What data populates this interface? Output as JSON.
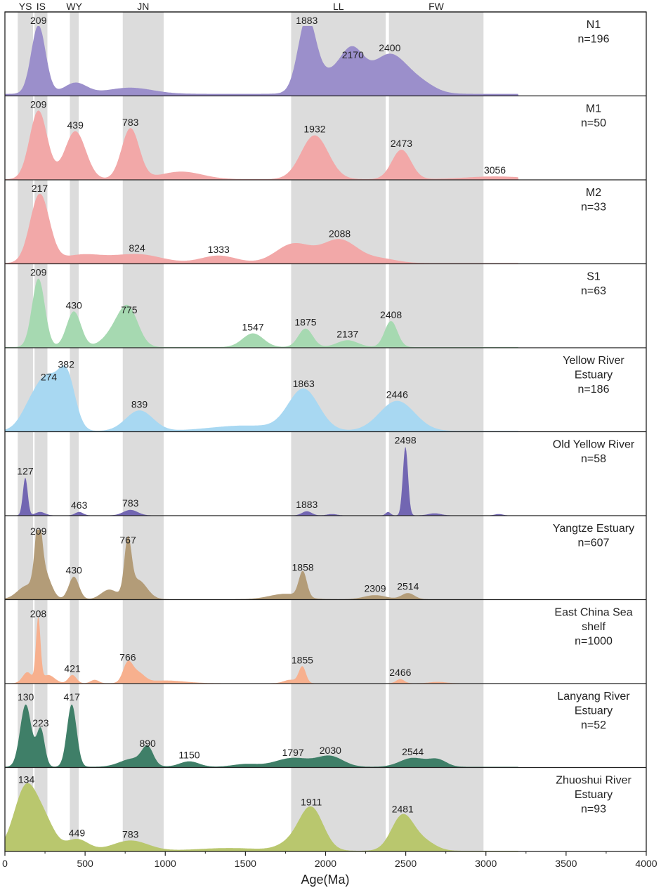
{
  "chart_data": {
    "type": "area",
    "xlabel": "Age(Ma)",
    "xlim": [
      0,
      4000
    ],
    "x_ticks": [
      "0",
      "500",
      "1000",
      "1500",
      "2000",
      "2500",
      "3000",
      "3500",
      "4000"
    ],
    "x_tick_values": [
      0,
      500,
      1000,
      1500,
      2000,
      2500,
      3000,
      3500,
      4000
    ],
    "bands": [
      {
        "label": "YS",
        "start": 80,
        "end": 175
      },
      {
        "label": "IS",
        "start": 185,
        "end": 265
      },
      {
        "label": "WY",
        "start": 405,
        "end": 460
      },
      {
        "label": "JN",
        "start": 735,
        "end": 990
      },
      {
        "label": "LL",
        "start": 1785,
        "end": 2375
      },
      {
        "label": "FW",
        "start": 2395,
        "end": 2985
      }
    ],
    "panels": [
      {
        "name": "N1",
        "n": "n=196",
        "color": "#9b8fcb",
        "base": 0.03,
        "peaks": [
          [
            209,
            1.0,
            45
          ],
          [
            440,
            0.16,
            70
          ],
          [
            780,
            0.09,
            140
          ],
          [
            1883,
            1.02,
            55
          ],
          [
            2050,
            0.3,
            120
          ],
          [
            2170,
            0.45,
            70
          ],
          [
            2400,
            0.57,
            110
          ],
          [
            2600,
            0.12,
            90
          ]
        ],
        "labels": [
          [
            "209",
            209,
            1.0
          ],
          [
            "1883",
            1883,
            1.0
          ],
          [
            "2170",
            2170,
            0.5
          ],
          [
            "2400",
            2400,
            0.6
          ]
        ]
      },
      {
        "name": "M1",
        "n": "n=50",
        "color": "#f2a8a8",
        "base": 0.01,
        "peaks": [
          [
            209,
            1.0,
            55
          ],
          [
            439,
            0.7,
            65
          ],
          [
            783,
            0.74,
            55
          ],
          [
            1100,
            0.11,
            130
          ],
          [
            1932,
            0.64,
            85
          ],
          [
            2473,
            0.43,
            60
          ],
          [
            3056,
            0.04,
            180
          ]
        ],
        "labels": [
          [
            "209",
            209,
            1.0
          ],
          [
            "439",
            439,
            0.7
          ],
          [
            "783",
            783,
            0.74
          ],
          [
            "1932",
            1932,
            0.64
          ],
          [
            "2473",
            2473,
            0.43
          ],
          [
            "3056",
            3056,
            0.04
          ]
        ]
      },
      {
        "name": "M2",
        "n": "n=33",
        "color": "#f2a8a8",
        "base": 0.01,
        "peaks": [
          [
            217,
            1.0,
            60
          ],
          [
            480,
            0.12,
            130
          ],
          [
            824,
            0.13,
            150
          ],
          [
            1333,
            0.11,
            110
          ],
          [
            1800,
            0.28,
            110
          ],
          [
            2088,
            0.34,
            110
          ],
          [
            2350,
            0.06,
            100
          ]
        ],
        "labels": [
          [
            "217",
            217,
            1.0
          ],
          [
            "824",
            824,
            0.13
          ],
          [
            "1333",
            1333,
            0.11
          ],
          [
            "2088",
            2088,
            0.34
          ]
        ]
      },
      {
        "name": "S1",
        "n": "n=63",
        "color": "#a6d9b1",
        "base": 0.01,
        "peaks": [
          [
            209,
            1.0,
            40
          ],
          [
            430,
            0.52,
            45
          ],
          [
            700,
            0.25,
            75
          ],
          [
            775,
            0.45,
            60
          ],
          [
            1547,
            0.2,
            65
          ],
          [
            1875,
            0.27,
            45
          ],
          [
            2137,
            0.1,
            65
          ],
          [
            2408,
            0.38,
            40
          ]
        ],
        "labels": [
          [
            "209",
            209,
            1.0
          ],
          [
            "430",
            430,
            0.52
          ],
          [
            "775",
            775,
            0.45
          ],
          [
            "1547",
            1547,
            0.2
          ],
          [
            "1875",
            1875,
            0.27
          ],
          [
            "2137",
            2137,
            0.1
          ],
          [
            "2408",
            2408,
            0.38
          ]
        ]
      },
      {
        "name": "Yellow River Estuary",
        "n": "n=186",
        "color": "#a8d8f2",
        "base": 0.01,
        "peaks": [
          [
            190,
            0.5,
            75
          ],
          [
            274,
            0.45,
            55
          ],
          [
            382,
            0.85,
            55
          ],
          [
            839,
            0.3,
            85
          ],
          [
            1500,
            0.08,
            220
          ],
          [
            1863,
            0.6,
            95
          ],
          [
            2446,
            0.44,
            110
          ]
        ],
        "labels": [
          [
            "274",
            274,
            0.7
          ],
          [
            "382",
            382,
            0.88
          ],
          [
            "839",
            839,
            0.3
          ],
          [
            "1863",
            1863,
            0.6
          ],
          [
            "2446",
            2446,
            0.44
          ]
        ]
      },
      {
        "name": "Old Yellow River",
        "n": "n=58",
        "color": "#7266b2",
        "base": 0.004,
        "peaks": [
          [
            127,
            0.55,
            15
          ],
          [
            220,
            0.05,
            30
          ],
          [
            463,
            0.05,
            25
          ],
          [
            783,
            0.08,
            45
          ],
          [
            1883,
            0.06,
            30
          ],
          [
            2040,
            0.02,
            30
          ],
          [
            2390,
            0.05,
            15
          ],
          [
            2498,
            1.0,
            16
          ],
          [
            2680,
            0.03,
            40
          ],
          [
            3080,
            0.02,
            25
          ]
        ],
        "labels": [
          [
            "127",
            127,
            0.55
          ],
          [
            "463",
            463,
            0.05
          ],
          [
            "783",
            783,
            0.08
          ],
          [
            "1883",
            1883,
            0.06
          ],
          [
            "2498",
            2498,
            1.0
          ]
        ]
      },
      {
        "name": "Yangtze Estuary",
        "n": "n=607",
        "color": "#b39c78",
        "base": 0.005,
        "peaks": [
          [
            140,
            0.2,
            60
          ],
          [
            209,
            0.9,
            22
          ],
          [
            250,
            0.35,
            40
          ],
          [
            430,
            0.33,
            32
          ],
          [
            650,
            0.14,
            50
          ],
          [
            767,
            0.77,
            22
          ],
          [
            830,
            0.28,
            55
          ],
          [
            1750,
            0.08,
            100
          ],
          [
            1858,
            0.37,
            25
          ],
          [
            2309,
            0.06,
            70
          ],
          [
            2514,
            0.09,
            40
          ]
        ],
        "labels": [
          [
            "209",
            209,
            0.9
          ],
          [
            "430",
            430,
            0.33
          ],
          [
            "767",
            767,
            0.77
          ],
          [
            "1858",
            1858,
            0.37
          ],
          [
            "2309",
            2309,
            0.06
          ],
          [
            "2514",
            2514,
            0.09
          ]
        ]
      },
      {
        "name": "East China Sea shelf",
        "n": "n=1000",
        "color": "#f7b08e",
        "base": 0.005,
        "peaks": [
          [
            140,
            0.16,
            30
          ],
          [
            208,
            0.92,
            14
          ],
          [
            270,
            0.12,
            40
          ],
          [
            421,
            0.12,
            25
          ],
          [
            560,
            0.05,
            25
          ],
          [
            766,
            0.28,
            30
          ],
          [
            830,
            0.14,
            40
          ],
          [
            1000,
            0.04,
            120
          ],
          [
            1855,
            0.24,
            22
          ],
          [
            1780,
            0.05,
            40
          ],
          [
            2466,
            0.06,
            25
          ],
          [
            2700,
            0.02,
            50
          ]
        ],
        "labels": [
          [
            "208",
            208,
            0.92
          ],
          [
            "421",
            421,
            0.12
          ],
          [
            "766",
            766,
            0.28
          ],
          [
            "1855",
            1855,
            0.24
          ],
          [
            "2466",
            2466,
            0.06
          ]
        ]
      },
      {
        "name": "Lanyang River Estuary",
        "n": "n=52",
        "color": "#3f7f68",
        "base": 0.01,
        "peaks": [
          [
            130,
            0.91,
            35
          ],
          [
            223,
            0.55,
            25
          ],
          [
            417,
            0.91,
            30
          ],
          [
            800,
            0.12,
            80
          ],
          [
            890,
            0.25,
            35
          ],
          [
            1150,
            0.08,
            60
          ],
          [
            1500,
            0.04,
            80
          ],
          [
            1797,
            0.13,
            110
          ],
          [
            2030,
            0.15,
            80
          ],
          [
            2544,
            0.13,
            80
          ],
          [
            2700,
            0.1,
            55
          ]
        ],
        "labels": [
          [
            "130",
            130,
            0.93
          ],
          [
            "223",
            223,
            0.55
          ],
          [
            "417",
            417,
            0.93
          ],
          [
            "890",
            890,
            0.25
          ],
          [
            "1150",
            1150,
            0.08
          ],
          [
            "1797",
            1797,
            0.12
          ],
          [
            "2030",
            2030,
            0.15
          ],
          [
            "2544",
            2544,
            0.13
          ]
        ]
      },
      {
        "name": "Zhuoshui River Estuary",
        "n": "n=93",
        "color": "#b9c76e",
        "base": 0.01,
        "peaks": [
          [
            134,
            0.95,
            75
          ],
          [
            260,
            0.3,
            60
          ],
          [
            449,
            0.17,
            70
          ],
          [
            783,
            0.15,
            110
          ],
          [
            1400,
            0.04,
            200
          ],
          [
            1911,
            0.62,
            75
          ],
          [
            1780,
            0.1,
            80
          ],
          [
            2481,
            0.52,
            70
          ],
          [
            2620,
            0.12,
            70
          ]
        ],
        "labels": [
          [
            "134",
            134,
            0.95
          ],
          [
            "449",
            449,
            0.17
          ],
          [
            "783",
            783,
            0.15
          ],
          [
            "1911",
            1911,
            0.62
          ],
          [
            "2481",
            2481,
            0.52
          ]
        ]
      }
    ]
  }
}
